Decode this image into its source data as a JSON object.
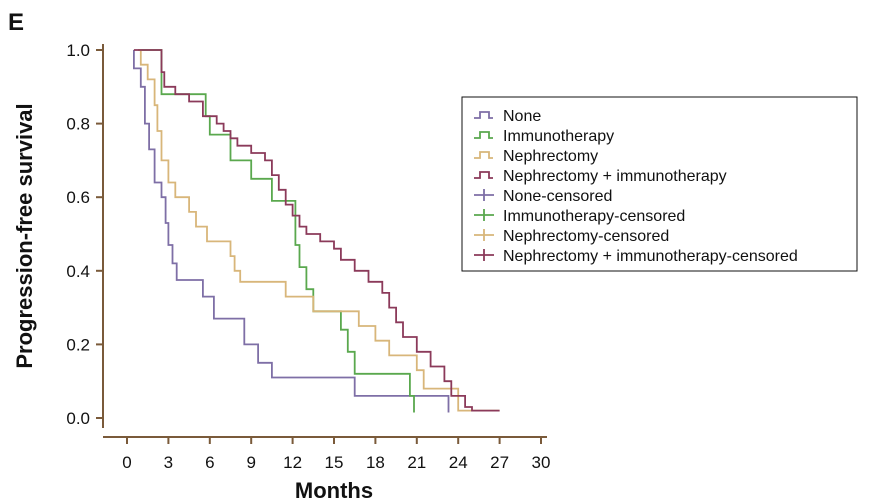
{
  "panel_label": "E",
  "chart_data": {
    "type": "line",
    "title": "",
    "xlabel": "Months",
    "ylabel": "Progression-free survival",
    "xlim": [
      0,
      30
    ],
    "ylim": [
      0,
      1.0
    ],
    "x_ticks": [
      0,
      3,
      6,
      9,
      12,
      15,
      18,
      21,
      24,
      27,
      30
    ],
    "x_tick_labels": [
      "0",
      "3",
      "6",
      "9",
      "12",
      "15",
      "18",
      "21",
      "24",
      "27",
      "30"
    ],
    "y_ticks": [
      0.0,
      0.2,
      0.4,
      0.6,
      0.8,
      1.0
    ],
    "y_tick_labels": [
      "0.0",
      "0.2",
      "0.4",
      "0.6",
      "0.8",
      "1.0"
    ],
    "grid": false,
    "legend_position": "right",
    "legend": [
      {
        "label": "None",
        "color": "#7e6fa6",
        "marker": "step"
      },
      {
        "label": "Immunotherapy",
        "color": "#5aa84e",
        "marker": "step"
      },
      {
        "label": "Nephrectomy",
        "color": "#d8b67a",
        "marker": "step"
      },
      {
        "label": "Nephrectomy + immunotherapy",
        "color": "#8b3a5a",
        "marker": "step"
      },
      {
        "label": "None-censored",
        "color": "#7e6fa6",
        "marker": "plus"
      },
      {
        "label": "Immunotherapy-censored",
        "color": "#5aa84e",
        "marker": "plus"
      },
      {
        "label": "Nephrectomy-censored",
        "color": "#d8b67a",
        "marker": "plus"
      },
      {
        "label": "Nephrectomy + immunotherapy-censored",
        "color": "#8b3a5a",
        "marker": "plus"
      }
    ],
    "series": [
      {
        "name": "None",
        "color": "#7e6fa6",
        "points": [
          [
            0.5,
            1.0
          ],
          [
            0.5,
            0.95
          ],
          [
            1.0,
            0.95
          ],
          [
            1.0,
            0.9
          ],
          [
            1.3,
            0.9
          ],
          [
            1.3,
            0.8
          ],
          [
            1.6,
            0.8
          ],
          [
            1.6,
            0.73
          ],
          [
            2.0,
            0.73
          ],
          [
            2.0,
            0.64
          ],
          [
            2.5,
            0.64
          ],
          [
            2.5,
            0.6
          ],
          [
            2.8,
            0.6
          ],
          [
            2.8,
            0.53
          ],
          [
            3.0,
            0.53
          ],
          [
            3.0,
            0.47
          ],
          [
            3.3,
            0.47
          ],
          [
            3.3,
            0.42
          ],
          [
            3.6,
            0.42
          ],
          [
            3.6,
            0.375
          ],
          [
            5.5,
            0.375
          ],
          [
            5.5,
            0.33
          ],
          [
            6.3,
            0.33
          ],
          [
            6.3,
            0.27
          ],
          [
            8.5,
            0.27
          ],
          [
            8.5,
            0.2
          ],
          [
            9.5,
            0.2
          ],
          [
            9.5,
            0.15
          ],
          [
            10.5,
            0.15
          ],
          [
            10.5,
            0.11
          ],
          [
            16.5,
            0.11
          ],
          [
            16.5,
            0.06
          ],
          [
            23.3,
            0.06
          ],
          [
            23.3,
            0.015
          ]
        ],
        "censored": []
      },
      {
        "name": "Immunotherapy",
        "color": "#5aa84e",
        "points": [
          [
            0.8,
            1.0
          ],
          [
            2.5,
            1.0
          ],
          [
            2.5,
            0.88
          ],
          [
            5.7,
            0.88
          ],
          [
            5.7,
            0.82
          ],
          [
            6.0,
            0.82
          ],
          [
            6.0,
            0.77
          ],
          [
            7.5,
            0.77
          ],
          [
            7.5,
            0.7
          ],
          [
            9.0,
            0.7
          ],
          [
            9.0,
            0.65
          ],
          [
            10.5,
            0.65
          ],
          [
            10.5,
            0.59
          ],
          [
            12.2,
            0.59
          ],
          [
            12.2,
            0.47
          ],
          [
            12.5,
            0.47
          ],
          [
            12.5,
            0.41
          ],
          [
            13.0,
            0.41
          ],
          [
            13.0,
            0.35
          ],
          [
            13.5,
            0.35
          ],
          [
            13.5,
            0.29
          ],
          [
            15.5,
            0.29
          ],
          [
            15.5,
            0.24
          ],
          [
            16.0,
            0.24
          ],
          [
            16.0,
            0.18
          ],
          [
            16.5,
            0.18
          ],
          [
            16.5,
            0.12
          ],
          [
            20.5,
            0.12
          ],
          [
            20.5,
            0.06
          ],
          [
            20.8,
            0.06
          ],
          [
            20.8,
            0.015
          ]
        ],
        "censored": []
      },
      {
        "name": "Nephrectomy",
        "color": "#d8b67a",
        "points": [
          [
            0.8,
            1.0
          ],
          [
            1.0,
            1.0
          ],
          [
            1.0,
            0.96
          ],
          [
            1.5,
            0.96
          ],
          [
            1.5,
            0.92
          ],
          [
            2.0,
            0.92
          ],
          [
            2.0,
            0.85
          ],
          [
            2.2,
            0.85
          ],
          [
            2.2,
            0.78
          ],
          [
            2.5,
            0.78
          ],
          [
            2.5,
            0.7
          ],
          [
            3.0,
            0.7
          ],
          [
            3.0,
            0.64
          ],
          [
            3.5,
            0.64
          ],
          [
            3.5,
            0.6
          ],
          [
            4.5,
            0.6
          ],
          [
            4.5,
            0.56
          ],
          [
            5.0,
            0.56
          ],
          [
            5.0,
            0.52
          ],
          [
            5.8,
            0.52
          ],
          [
            5.8,
            0.48
          ],
          [
            7.5,
            0.48
          ],
          [
            7.5,
            0.44
          ],
          [
            7.8,
            0.44
          ],
          [
            7.8,
            0.4
          ],
          [
            8.2,
            0.4
          ],
          [
            8.2,
            0.37
          ],
          [
            11.5,
            0.37
          ],
          [
            11.5,
            0.33
          ],
          [
            13.5,
            0.33
          ],
          [
            13.5,
            0.29
          ],
          [
            16.8,
            0.29
          ],
          [
            16.8,
            0.25
          ],
          [
            18.0,
            0.25
          ],
          [
            18.0,
            0.21
          ],
          [
            19.0,
            0.21
          ],
          [
            19.0,
            0.17
          ],
          [
            21.0,
            0.17
          ],
          [
            21.0,
            0.13
          ],
          [
            21.5,
            0.13
          ],
          [
            21.5,
            0.08
          ],
          [
            24.0,
            0.08
          ],
          [
            24.0,
            0.02
          ],
          [
            27.0,
            0.02
          ]
        ],
        "censored": []
      },
      {
        "name": "Nephrectomy + immunotherapy",
        "color": "#8b3a5a",
        "points": [
          [
            0.5,
            1.0
          ],
          [
            2.5,
            1.0
          ],
          [
            2.5,
            0.94
          ],
          [
            2.7,
            0.94
          ],
          [
            2.7,
            0.9
          ],
          [
            3.5,
            0.9
          ],
          [
            3.5,
            0.88
          ],
          [
            4.5,
            0.88
          ],
          [
            4.5,
            0.86
          ],
          [
            5.5,
            0.86
          ],
          [
            5.5,
            0.82
          ],
          [
            6.5,
            0.82
          ],
          [
            6.5,
            0.8
          ],
          [
            7.0,
            0.8
          ],
          [
            7.0,
            0.78
          ],
          [
            7.5,
            0.78
          ],
          [
            7.5,
            0.76
          ],
          [
            8.0,
            0.76
          ],
          [
            8.0,
            0.74
          ],
          [
            9.0,
            0.74
          ],
          [
            9.0,
            0.72
          ],
          [
            10.0,
            0.72
          ],
          [
            10.0,
            0.7
          ],
          [
            10.5,
            0.7
          ],
          [
            10.5,
            0.66
          ],
          [
            11.0,
            0.66
          ],
          [
            11.0,
            0.62
          ],
          [
            11.5,
            0.62
          ],
          [
            11.5,
            0.58
          ],
          [
            12.0,
            0.58
          ],
          [
            12.0,
            0.55
          ],
          [
            12.5,
            0.55
          ],
          [
            12.5,
            0.52
          ],
          [
            13.0,
            0.52
          ],
          [
            13.0,
            0.5
          ],
          [
            14.0,
            0.5
          ],
          [
            14.0,
            0.48
          ],
          [
            15.0,
            0.48
          ],
          [
            15.0,
            0.46
          ],
          [
            15.5,
            0.46
          ],
          [
            15.5,
            0.43
          ],
          [
            16.5,
            0.43
          ],
          [
            16.5,
            0.4
          ],
          [
            17.5,
            0.4
          ],
          [
            17.5,
            0.37
          ],
          [
            18.5,
            0.37
          ],
          [
            18.5,
            0.34
          ],
          [
            19.0,
            0.34
          ],
          [
            19.0,
            0.3
          ],
          [
            19.5,
            0.3
          ],
          [
            19.5,
            0.26
          ],
          [
            20.0,
            0.26
          ],
          [
            20.0,
            0.22
          ],
          [
            21.0,
            0.22
          ],
          [
            21.0,
            0.18
          ],
          [
            22.0,
            0.18
          ],
          [
            22.0,
            0.14
          ],
          [
            23.0,
            0.14
          ],
          [
            23.0,
            0.1
          ],
          [
            23.5,
            0.1
          ],
          [
            23.5,
            0.06
          ],
          [
            24.5,
            0.06
          ],
          [
            24.5,
            0.03
          ],
          [
            25.0,
            0.03
          ],
          [
            25.0,
            0.02
          ],
          [
            27.0,
            0.02
          ]
        ],
        "censored": []
      }
    ]
  }
}
